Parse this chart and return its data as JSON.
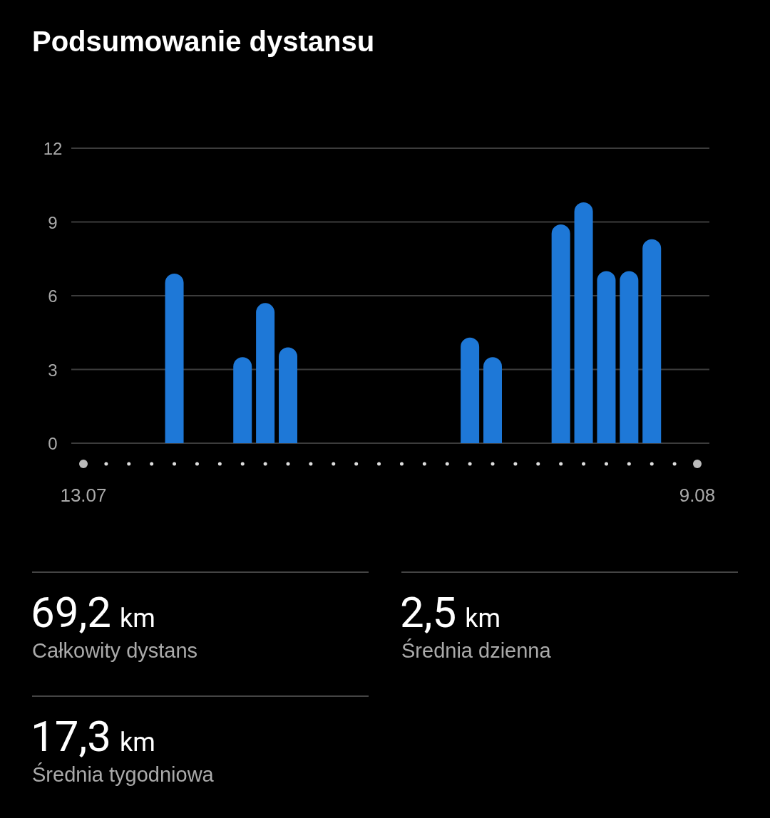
{
  "chart_data": {
    "type": "bar",
    "title": "Podsumowanie dystansu",
    "categories": [
      "13.07",
      null,
      null,
      null,
      null,
      null,
      null,
      null,
      null,
      null,
      null,
      null,
      null,
      null,
      null,
      null,
      null,
      null,
      null,
      null,
      null,
      null,
      null,
      null,
      null,
      null,
      null,
      "9.08"
    ],
    "values": [
      0,
      0,
      0,
      0,
      6.9,
      0,
      0,
      3.5,
      5.7,
      3.9,
      0,
      0,
      0,
      0,
      0,
      0,
      0,
      4.3,
      3.5,
      0,
      0,
      8.9,
      9.8,
      7.0,
      7.0,
      8.3,
      0,
      0
    ],
    "color": "#1e78d7",
    "ylim": [
      0,
      12
    ],
    "yticks": [
      0,
      3,
      6,
      9,
      12
    ],
    "grid": "y",
    "annotations": [
      "69,2 km",
      "Całkowity dystans",
      "2,5 km",
      "Średnia dzienna",
      "17,3 km",
      "Średnia tygodniowa"
    ]
  }
}
